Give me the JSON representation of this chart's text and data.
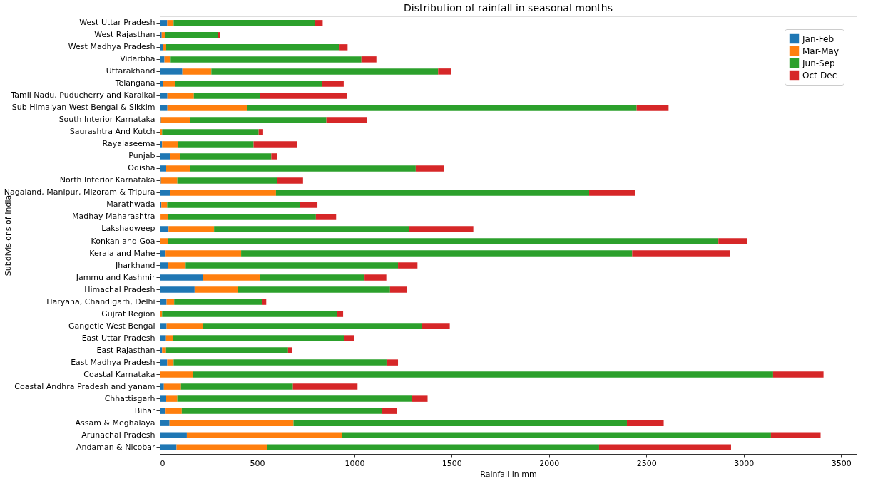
{
  "chart_data": {
    "type": "bar",
    "orientation": "horizontal",
    "stacked": true,
    "title": "Distribution of rainfall in seasonal months",
    "xlabel": "Rainfall in mm",
    "ylabel": "Subdivisions of India",
    "categories": [
      "West Uttar Pradesh",
      "West Rajasthan",
      "West Madhya Pradesh",
      "Vidarbha",
      "Uttarakhand",
      "Telangana",
      "Tamil Nadu, Puducherry and Karaikal",
      "Sub Himalyan West Bengal & Sikkim",
      "South Interior Karnataka",
      "Saurashtra And Kutch",
      "Rayalaseema",
      "Punjab",
      "Odisha",
      "North Interior Karnataka",
      "Nagaland, Manipur, Mizoram & Tripura",
      "Marathwada",
      "Madhay Maharashtra",
      "Lakshadweep",
      "Konkan and Goa",
      "Kerala and Mahe",
      "Jharkhand",
      "Jammu and Kashmir",
      "Himachal Pradesh",
      "Haryana, Chandigarh, Delhi",
      "Gujrat Region",
      "Gangetic West Bengal",
      "East Uttar Pradesh",
      "East Rajasthan",
      "East Madhya Pradesh",
      "Coastal Karnataka",
      "Coastal Andhra Pradesh and yanam",
      "Chhattisgarh",
      "Bihar",
      "Assam & Meghalaya",
      "Arunachal Pradesh",
      "Andaman & Nicobar"
    ],
    "series": [
      {
        "name": "Jan-Feb",
        "color": "#1f77b4",
        "values": [
          38,
          10,
          15,
          24,
          116,
          18,
          39,
          39,
          6,
          2,
          12,
          54,
          33,
          6,
          54,
          8,
          4,
          45,
          2,
          30,
          42,
          222,
          179,
          35,
          3,
          35,
          32,
          12,
          38,
          3,
          21,
          33,
          30,
          50,
          139,
          86
        ]
      },
      {
        "name": "Mar-May",
        "color": "#ff7f0e",
        "values": [
          33,
          17,
          18,
          32,
          149,
          59,
          136,
          410,
          149,
          10,
          80,
          52,
          122,
          84,
          543,
          30,
          38,
          234,
          40,
          388,
          91,
          292,
          224,
          39,
          9,
          188,
          36,
          20,
          33,
          167,
          88,
          57,
          83,
          637,
          796,
          466
        ]
      },
      {
        "name": "Jun-Sep",
        "color": "#2ca02c",
        "values": [
          725,
          272,
          887,
          980,
          1165,
          757,
          338,
          2001,
          701,
          496,
          390,
          467,
          1160,
          512,
          1609,
          681,
          760,
          1002,
          2828,
          2009,
          1091,
          538,
          780,
          451,
          900,
          1122,
          879,
          627,
          1094,
          2981,
          575,
          1205,
          1030,
          1713,
          2205,
          1705
        ]
      },
      {
        "name": "Oct-Dec",
        "color": "#d62728",
        "values": [
          41,
          9,
          45,
          77,
          67,
          111,
          447,
          164,
          210,
          23,
          224,
          29,
          145,
          134,
          236,
          91,
          104,
          330,
          148,
          501,
          100,
          112,
          86,
          22,
          30,
          145,
          51,
          22,
          59,
          259,
          332,
          81,
          75,
          189,
          255,
          678
        ]
      }
    ],
    "xlim": [
      0,
      3580
    ],
    "xticks": [
      0,
      500,
      1000,
      1500,
      2000,
      2500,
      3000,
      3500
    ],
    "grid": false,
    "legend": "top right"
  }
}
